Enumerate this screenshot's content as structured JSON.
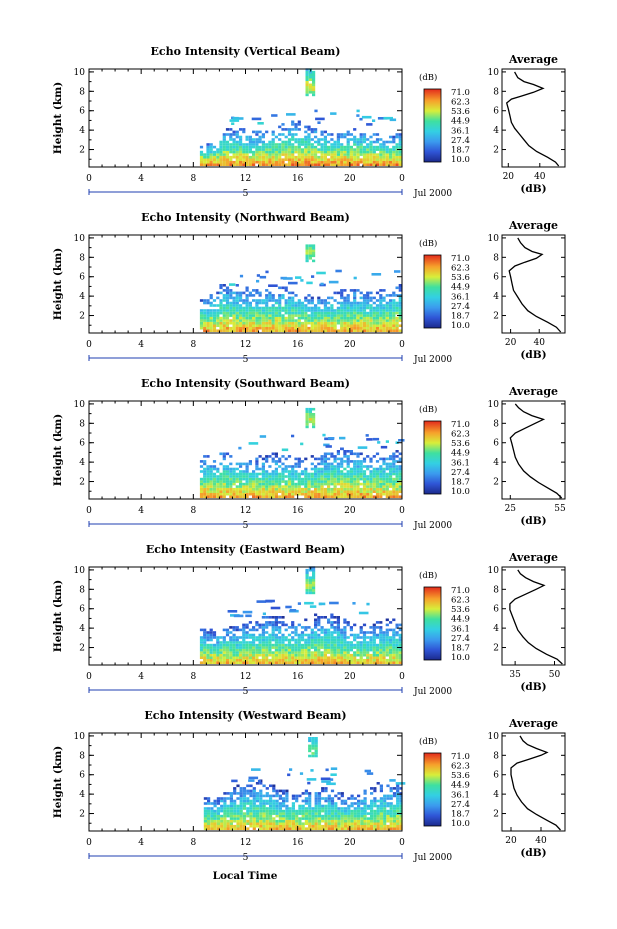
{
  "figure": {
    "xlabel": "Local Time",
    "date_label": "Jul 2000",
    "day_marker": "5"
  },
  "chart_data": [
    {
      "type": "heatmap",
      "title": "Echo Intensity (Vertical Beam)",
      "ylabel": "Height (km)",
      "x_ticks": [
        "0",
        "4",
        "8",
        "12",
        "16",
        "20",
        "0"
      ],
      "y_ticks": [
        "2",
        "4",
        "6",
        "8",
        "10"
      ],
      "xlim": [
        0,
        24
      ],
      "ylim": [
        0.2,
        10.3
      ],
      "colorbar": {
        "title": "(dB)",
        "ticks": [
          "71.0",
          "62.3",
          "53.6",
          "44.9",
          "36.1",
          "27.4",
          "18.7",
          "10.0"
        ],
        "range": [
          10.0,
          71.0
        ]
      },
      "echo_regions": [
        {
          "name": "low-cloud layer",
          "t_start": 8.5,
          "t_end": 24,
          "z_bottom": 0.3,
          "z_top": 4.0,
          "peak_db": 62
        },
        {
          "name": "high echo",
          "t_start": 16.6,
          "t_end": 17.3,
          "z_bottom": 7.5,
          "z_top": 9.8,
          "peak_db": 55
        }
      ],
      "profile": {
        "title": "Average",
        "xlabel": "(dB)",
        "x_ticks": [
          "20",
          "40"
        ],
        "xlim": [
          16,
          56
        ],
        "y_ticks": [
          "2",
          "4",
          "6",
          "8",
          "10"
        ],
        "points": [
          [
            52,
            0.3
          ],
          [
            50,
            0.7
          ],
          [
            45,
            1.2
          ],
          [
            38,
            1.8
          ],
          [
            33,
            2.4
          ],
          [
            30,
            3.0
          ],
          [
            27,
            3.6
          ],
          [
            24,
            4.2
          ],
          [
            22,
            4.8
          ],
          [
            21,
            5.5
          ],
          [
            20,
            6.2
          ],
          [
            19,
            6.8
          ],
          [
            22,
            7.2
          ],
          [
            28,
            7.5
          ],
          [
            36,
            7.9
          ],
          [
            42,
            8.3
          ],
          [
            36,
            8.7
          ],
          [
            30,
            9.0
          ],
          [
            26,
            9.4
          ],
          [
            24,
            10.0
          ]
        ]
      }
    },
    {
      "type": "heatmap",
      "title": "Echo Intensity (Northward Beam)",
      "ylabel": "Height (km)",
      "x_ticks": [
        "0",
        "4",
        "8",
        "12",
        "16",
        "20",
        "0"
      ],
      "y_ticks": [
        "2",
        "4",
        "6",
        "8",
        "10"
      ],
      "xlim": [
        0,
        24
      ],
      "ylim": [
        0.2,
        10.3
      ],
      "colorbar": {
        "title": "(dB)",
        "ticks": [
          "71.0",
          "62.3",
          "53.6",
          "44.9",
          "36.1",
          "27.4",
          "18.7",
          "10.0"
        ],
        "range": [
          10.0,
          71.0
        ]
      },
      "echo_regions": [
        {
          "name": "low-cloud layer",
          "t_start": 8.5,
          "t_end": 24,
          "z_bottom": 0.3,
          "z_top": 4.6,
          "peak_db": 60
        },
        {
          "name": "high echo",
          "t_start": 16.6,
          "t_end": 17.3,
          "z_bottom": 7.5,
          "z_top": 9.8,
          "peak_db": 50
        }
      ],
      "profile": {
        "title": "Average",
        "xlabel": "(dB)",
        "x_ticks": [
          "20",
          "40"
        ],
        "xlim": [
          14,
          58
        ],
        "y_ticks": [
          "2",
          "4",
          "6",
          "8",
          "10"
        ],
        "points": [
          [
            55,
            0.3
          ],
          [
            52,
            0.8
          ],
          [
            46,
            1.3
          ],
          [
            38,
            1.9
          ],
          [
            32,
            2.5
          ],
          [
            28,
            3.2
          ],
          [
            25,
            3.9
          ],
          [
            22,
            4.6
          ],
          [
            21,
            5.3
          ],
          [
            20,
            6.0
          ],
          [
            19,
            6.6
          ],
          [
            23,
            7.1
          ],
          [
            30,
            7.5
          ],
          [
            38,
            7.9
          ],
          [
            42,
            8.3
          ],
          [
            35,
            8.6
          ],
          [
            30,
            9.0
          ],
          [
            27,
            9.5
          ],
          [
            25,
            10.0
          ]
        ]
      }
    },
    {
      "type": "heatmap",
      "title": "Echo Intensity (Southward Beam)",
      "ylabel": "Height (km)",
      "x_ticks": [
        "0",
        "4",
        "8",
        "12",
        "16",
        "20",
        "0"
      ],
      "y_ticks": [
        "2",
        "4",
        "6",
        "8",
        "10"
      ],
      "xlim": [
        0,
        24
      ],
      "ylim": [
        0.2,
        10.3
      ],
      "colorbar": {
        "title": "(dB)",
        "ticks": [
          "71.0",
          "62.3",
          "53.6",
          "44.9",
          "36.1",
          "27.4",
          "18.7",
          "10.0"
        ],
        "range": [
          10.0,
          71.0
        ]
      },
      "echo_regions": [
        {
          "name": "low-cloud layer",
          "t_start": 8.5,
          "t_end": 24,
          "z_bottom": 0.3,
          "z_top": 4.8,
          "peak_db": 60
        },
        {
          "name": "high echo",
          "t_start": 16.6,
          "t_end": 17.3,
          "z_bottom": 7.5,
          "z_top": 9.8,
          "peak_db": 52
        }
      ],
      "profile": {
        "title": "Average",
        "xlabel": "(dB)",
        "x_ticks": [
          "25",
          "55"
        ],
        "xlim": [
          20,
          58
        ],
        "y_ticks": [
          "2",
          "4",
          "6",
          "8",
          "10"
        ],
        "points": [
          [
            56,
            0.3
          ],
          [
            53,
            0.8
          ],
          [
            48,
            1.3
          ],
          [
            42,
            1.9
          ],
          [
            37,
            2.5
          ],
          [
            33,
            3.1
          ],
          [
            30,
            3.8
          ],
          [
            28,
            4.5
          ],
          [
            27,
            5.2
          ],
          [
            26,
            5.9
          ],
          [
            25,
            6.5
          ],
          [
            28,
            7.0
          ],
          [
            34,
            7.5
          ],
          [
            40,
            8.0
          ],
          [
            45,
            8.4
          ],
          [
            38,
            8.8
          ],
          [
            33,
            9.2
          ],
          [
            30,
            9.6
          ],
          [
            28,
            10.0
          ]
        ]
      }
    },
    {
      "type": "heatmap",
      "title": "Echo Intensity (Eastward Beam)",
      "ylabel": "Height (km)",
      "x_ticks": [
        "0",
        "4",
        "8",
        "12",
        "16",
        "20",
        "0"
      ],
      "y_ticks": [
        "2",
        "4",
        "6",
        "8",
        "10"
      ],
      "xlim": [
        0,
        24
      ],
      "ylim": [
        0.2,
        10.3
      ],
      "colorbar": {
        "title": "(dB)",
        "ticks": [
          "71.0",
          "62.3",
          "53.6",
          "44.9",
          "36.1",
          "27.4",
          "18.7",
          "10.0"
        ],
        "range": [
          10.0,
          71.0
        ]
      },
      "echo_regions": [
        {
          "name": "low-cloud layer",
          "t_start": 8.5,
          "t_end": 24,
          "z_bottom": 0.3,
          "z_top": 4.8,
          "peak_db": 58
        },
        {
          "name": "high echo",
          "t_start": 16.6,
          "t_end": 17.3,
          "z_bottom": 7.5,
          "z_top": 9.8,
          "peak_db": 50
        }
      ],
      "profile": {
        "title": "Average",
        "xlabel": "(dB)",
        "x_ticks": [
          "35",
          "50"
        ],
        "xlim": [
          30,
          54
        ],
        "y_ticks": [
          "2",
          "4",
          "6",
          "8",
          "10"
        ],
        "points": [
          [
            53,
            0.3
          ],
          [
            51,
            0.8
          ],
          [
            47,
            1.3
          ],
          [
            43,
            1.9
          ],
          [
            40,
            2.5
          ],
          [
            38,
            3.1
          ],
          [
            36,
            3.8
          ],
          [
            35,
            4.5
          ],
          [
            34,
            5.2
          ],
          [
            33,
            5.9
          ],
          [
            33,
            6.5
          ],
          [
            35,
            7.0
          ],
          [
            39,
            7.5
          ],
          [
            43,
            8.0
          ],
          [
            46,
            8.4
          ],
          [
            42,
            8.8
          ],
          [
            39,
            9.2
          ],
          [
            37,
            9.6
          ],
          [
            36,
            10.0
          ]
        ]
      }
    },
    {
      "type": "heatmap",
      "title": "Echo Intensity (Westward Beam)",
      "ylabel": "Height (km)",
      "x_ticks": [
        "0",
        "4",
        "8",
        "12",
        "16",
        "20",
        "0"
      ],
      "y_ticks": [
        "2",
        "4",
        "6",
        "8",
        "10"
      ],
      "xlim": [
        0,
        24
      ],
      "ylim": [
        0.2,
        10.3
      ],
      "colorbar": {
        "title": "(dB)",
        "ticks": [
          "71.0",
          "62.3",
          "53.6",
          "44.9",
          "36.1",
          "27.4",
          "18.7",
          "10.0"
        ],
        "range": [
          10.0,
          71.0
        ]
      },
      "echo_regions": [
        {
          "name": "low-cloud layer",
          "t_start": 8.8,
          "t_end": 24,
          "z_bottom": 0.3,
          "z_top": 4.6,
          "peak_db": 58
        },
        {
          "name": "high echo",
          "t_start": 16.8,
          "t_end": 17.4,
          "z_bottom": 7.8,
          "z_top": 9.8,
          "peak_db": 48
        }
      ],
      "profile": {
        "title": "Average",
        "xlabel": "(dB)",
        "x_ticks": [
          "20",
          "40"
        ],
        "xlim": [
          14,
          56
        ],
        "y_ticks": [
          "2",
          "4",
          "6",
          "8",
          "10"
        ],
        "points": [
          [
            53,
            0.3
          ],
          [
            50,
            0.8
          ],
          [
            44,
            1.3
          ],
          [
            37,
            1.9
          ],
          [
            31,
            2.5
          ],
          [
            27,
            3.2
          ],
          [
            24,
            3.9
          ],
          [
            22,
            4.6
          ],
          [
            21,
            5.3
          ],
          [
            20,
            6.0
          ],
          [
            20,
            6.7
          ],
          [
            24,
            7.2
          ],
          [
            32,
            7.6
          ],
          [
            40,
            8.0
          ],
          [
            44,
            8.3
          ],
          [
            37,
            8.7
          ],
          [
            31,
            9.1
          ],
          [
            28,
            9.5
          ],
          [
            26,
            10.0
          ]
        ]
      }
    }
  ]
}
